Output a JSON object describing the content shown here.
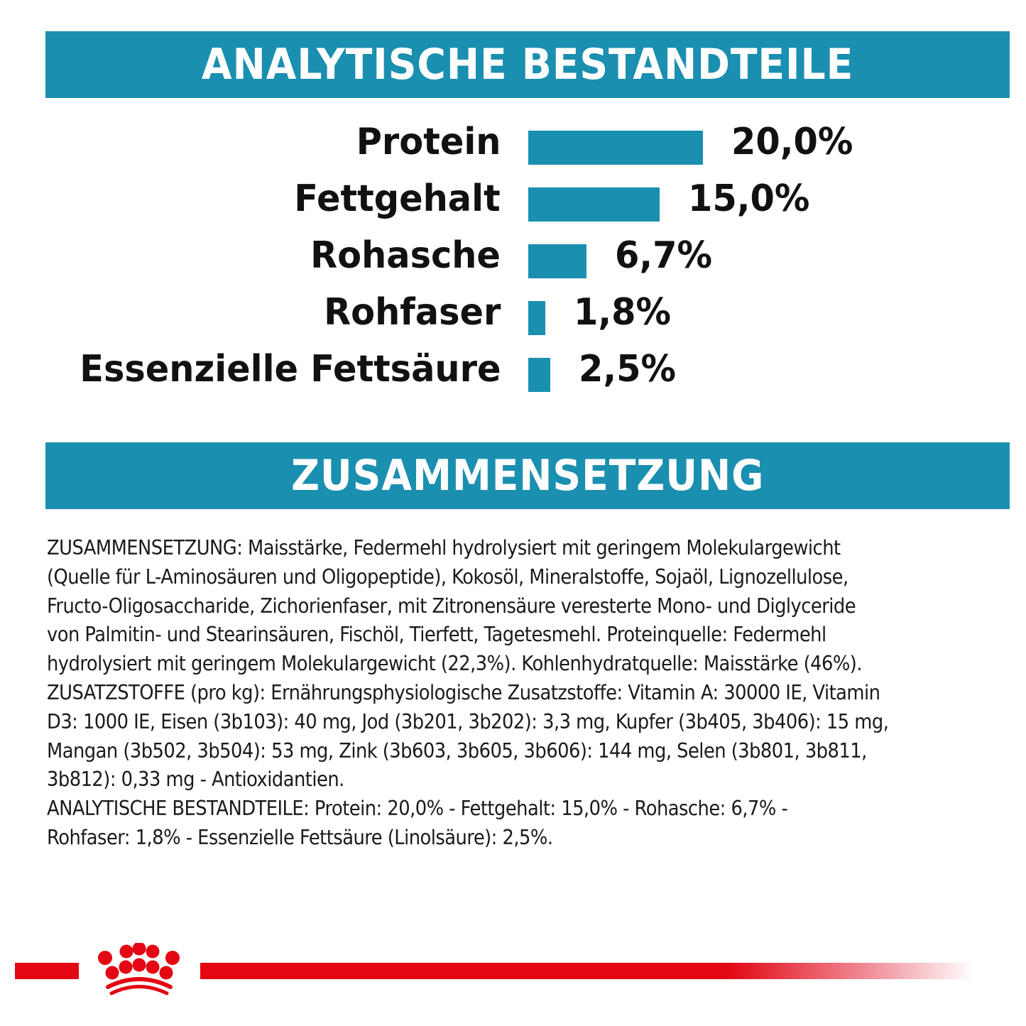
{
  "sections": {
    "analytic_title": "ANALYTISCHE BESTANDTEILE",
    "composition_title": "ZUSAMMENSETZUNG"
  },
  "colors": {
    "accent_teal": "#1a8fb0",
    "brand_red": "#e30613",
    "text": "#111111"
  },
  "chart_data": {
    "type": "bar",
    "orientation": "horizontal",
    "title": "ANALYTISCHE BESTANDTEILE",
    "categories": [
      "Protein",
      "Fettgehalt",
      "Rohasche",
      "Rohfaser",
      "Essenzielle Fettsäure"
    ],
    "values": [
      20.0,
      15.0,
      6.7,
      1.8,
      2.5
    ],
    "value_labels": [
      "20,0%",
      "15,0%",
      "6,7%",
      "1,8%",
      "2,5%"
    ],
    "unit": "%",
    "xlabel": "",
    "ylabel": "",
    "grid": false,
    "legend": "none"
  },
  "composition_lines": [
    "ZUSAMMENSETZUNG: Maisstärke, Federmehl hydrolysiert mit geringem Molekulargewicht",
    "(Quelle für L-Aminosäuren und Oligopeptide), Kokosöl, Mineralstoffe, Sojaöl, Lignozellulose,",
    "Fructo-Oligosaccharide, Zichorienfaser, mit Zitronensäure veresterte Mono- und Diglyceride",
    "von Palmitin- und Stearinsäuren, Fischöl, Tierfett, Tagetesmehl. Proteinquelle: Federmehl",
    "hydrolysiert mit geringem Molekulargewicht (22,3%). Kohlenhydratquelle: Maisstärke (46%).",
    "ZUSATZSTOFFE (pro kg): Ernährungsphysiologische Zusatzstoffe: Vitamin A: 30000 IE, Vitamin",
    "D3: 1000 IE, Eisen (3b103): 40 mg, Jod (3b201, 3b202): 3,3 mg, Kupfer (3b405, 3b406): 15 mg,",
    "Mangan (3b502, 3b504): 53 mg, Zink (3b603, 3b605, 3b606): 144 mg, Selen (3b801, 3b811,",
    "3b812): 0,33 mg - Antioxidantien.",
    "ANALYTISCHE BESTANDTEILE: Protein: 20,0% - Fettgehalt: 15,0% - Rohasche: 6,7% -",
    "Rohfaser: 1,8% - Essenzielle Fettsäure (Linolsäure): 2,5%."
  ],
  "footer": {
    "logo_icon": "royal-canin-crown-icon"
  }
}
